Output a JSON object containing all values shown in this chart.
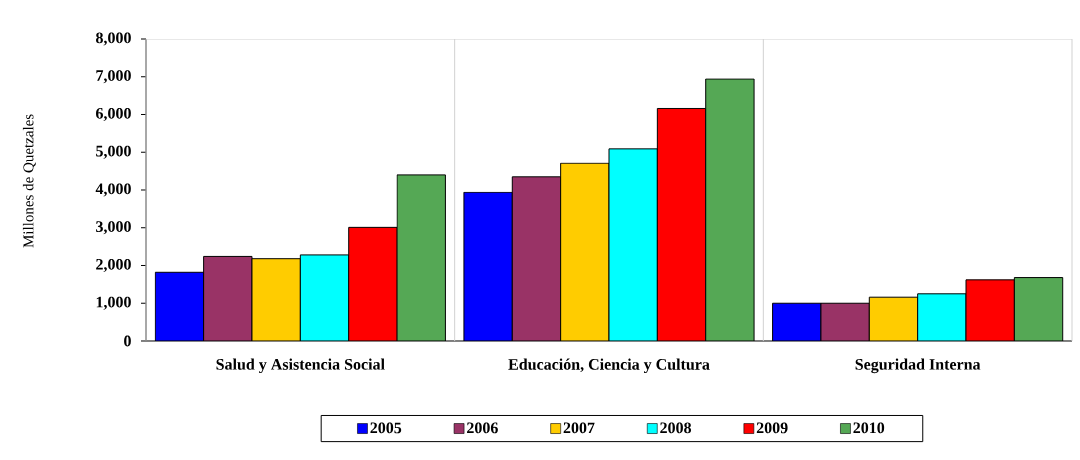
{
  "chart_data": {
    "type": "bar",
    "ylabel": "Millones de Quetzales",
    "categories": [
      "Salud y Asistencia Social",
      "Educación, Ciencia y Cultura",
      "Seguridad Interna"
    ],
    "series": [
      {
        "name": "2005",
        "color": "#0000ff",
        "values": [
          1820,
          3940,
          1000
        ]
      },
      {
        "name": "2006",
        "color": "#993366",
        "values": [
          2240,
          4350,
          1000
        ]
      },
      {
        "name": "2007",
        "color": "#ffcc00",
        "values": [
          2180,
          4710,
          1160
        ]
      },
      {
        "name": "2008",
        "color": "#00ffff",
        "values": [
          2280,
          5090,
          1250
        ]
      },
      {
        "name": "2009",
        "color": "#ff0000",
        "values": [
          3010,
          6160,
          1620
        ]
      },
      {
        "name": "2010",
        "color": "#55a855",
        "values": [
          4400,
          6940,
          1680
        ]
      }
    ],
    "ylim": [
      0,
      8000
    ],
    "yticks": [
      0,
      {
        "value": 1000,
        "label": "1,000"
      },
      {
        "value": 2000,
        "label": "2,000"
      },
      {
        "value": 3000,
        "label": "3,000"
      },
      {
        "value": 4000,
        "label": "4,000"
      },
      {
        "value": 5000,
        "label": "5,000"
      },
      {
        "value": 6000,
        "label": "6,000"
      },
      {
        "value": 7000,
        "label": "7,000"
      },
      {
        "value": 8000,
        "label": "8,000"
      }
    ],
    "grid": "x",
    "legend": "bottom"
  }
}
